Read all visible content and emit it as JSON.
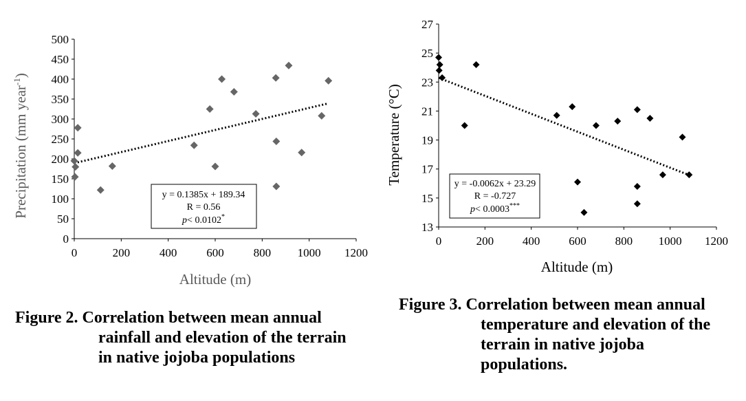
{
  "figures": [
    {
      "caption": {
        "line1": "Figure 2. Correlation between mean annual",
        "line2": "rainfall and elevation of the terrain",
        "line3": "in native jojoba populations"
      }
    },
    {
      "caption": {
        "line1": "Figure 3. Correlation between mean annual",
        "line2": "temperature and elevation of the",
        "line3": "terrain in native jojoba",
        "line4": "populations."
      }
    }
  ],
  "chart_data": [
    {
      "type": "scatter",
      "title": "",
      "xlabel": "Altitude (m)",
      "ylabel": "Precipitation (mm year",
      "ylabel_sup": "-1",
      "ylabel_close": ")",
      "xlim": [
        0,
        1200
      ],
      "ylim": [
        0,
        500
      ],
      "xticks": [
        0,
        200,
        400,
        600,
        800,
        1000,
        1200
      ],
      "yticks": [
        0,
        50,
        100,
        150,
        200,
        250,
        300,
        350,
        400,
        450,
        500
      ],
      "grid": false,
      "marker_color": "#666666",
      "trend_color": "#000000",
      "axis_label_color": "#595959",
      "trendline": {
        "slope": 0.1385,
        "intercept": 189.34,
        "x_range": [
          0,
          1080
        ],
        "style": "dotted"
      },
      "annotation": {
        "equation": "y = 0.1385x + 189.34",
        "r": "R = 0.56",
        "p_prefix": "p",
        "p_rest": "< 0.0102",
        "p_sup": "*"
      },
      "points": [
        {
          "x": 0,
          "y": 195
        },
        {
          "x": 3,
          "y": 155
        },
        {
          "x": 5,
          "y": 180
        },
        {
          "x": 15,
          "y": 278
        },
        {
          "x": 15,
          "y": 215
        },
        {
          "x": 112,
          "y": 122
        },
        {
          "x": 162,
          "y": 182
        },
        {
          "x": 510,
          "y": 234
        },
        {
          "x": 577,
          "y": 325
        },
        {
          "x": 600,
          "y": 181
        },
        {
          "x": 628,
          "y": 400
        },
        {
          "x": 680,
          "y": 368
        },
        {
          "x": 773,
          "y": 313
        },
        {
          "x": 858,
          "y": 403
        },
        {
          "x": 860,
          "y": 244
        },
        {
          "x": 860,
          "y": 131
        },
        {
          "x": 913,
          "y": 434
        },
        {
          "x": 968,
          "y": 216
        },
        {
          "x": 1053,
          "y": 308
        },
        {
          "x": 1082,
          "y": 396
        }
      ]
    },
    {
      "type": "scatter",
      "title": "",
      "xlabel": "Altitude (m)",
      "ylabel": "Temperature (°C)",
      "xlim": [
        0,
        1200
      ],
      "ylim": [
        13,
        27
      ],
      "xticks": [
        0,
        200,
        400,
        600,
        800,
        1000,
        1200
      ],
      "yticks": [
        13,
        15,
        17,
        19,
        21,
        23,
        25,
        27
      ],
      "grid": false,
      "marker_color": "#000000",
      "trend_color": "#000000",
      "axis_label_color": "#000000",
      "trendline": {
        "slope": -0.0062,
        "intercept": 23.29,
        "x_range": [
          0,
          1080
        ],
        "style": "dotted"
      },
      "annotation": {
        "equation": "y = -0.0062x + 23.29",
        "r": "R =  -0.727",
        "p_prefix": "p",
        "p_rest": "< 0.0003",
        "p_sup": "***"
      },
      "points": [
        {
          "x": 0,
          "y": 24.7
        },
        {
          "x": 5,
          "y": 24.2
        },
        {
          "x": 2,
          "y": 23.8
        },
        {
          "x": 15,
          "y": 23.3
        },
        {
          "x": 112,
          "y": 20.0
        },
        {
          "x": 162,
          "y": 24.2
        },
        {
          "x": 510,
          "y": 20.7
        },
        {
          "x": 577,
          "y": 21.3
        },
        {
          "x": 600,
          "y": 16.1
        },
        {
          "x": 628,
          "y": 14.0
        },
        {
          "x": 680,
          "y": 20.0
        },
        {
          "x": 773,
          "y": 20.3
        },
        {
          "x": 858,
          "y": 21.1
        },
        {
          "x": 858,
          "y": 15.8
        },
        {
          "x": 858,
          "y": 14.6
        },
        {
          "x": 913,
          "y": 20.5
        },
        {
          "x": 968,
          "y": 16.6
        },
        {
          "x": 1053,
          "y": 19.2
        },
        {
          "x": 1082,
          "y": 16.6
        }
      ]
    }
  ]
}
